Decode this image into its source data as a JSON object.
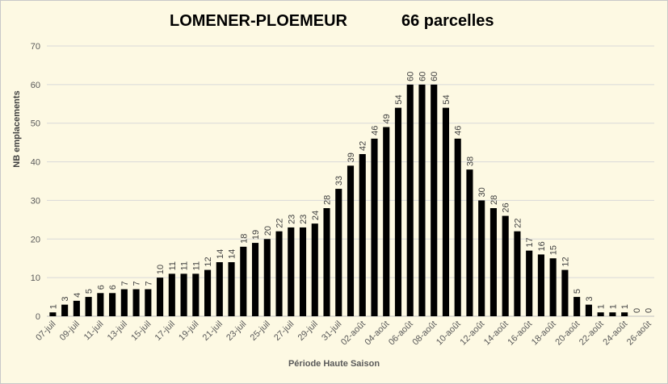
{
  "chart_data": {
    "type": "bar",
    "title": "LOMENER-PLOEMEUR",
    "subtitle": "66 parcelles",
    "xlabel": "Période Haute Saison",
    "ylabel": "NB emplacements",
    "ylim": [
      0,
      70
    ],
    "yticks": [
      0,
      10,
      20,
      30,
      40,
      50,
      60,
      70
    ],
    "grid": true,
    "legend": "none",
    "bar_color": "#000000",
    "categories": [
      "07-juil",
      "08-juil",
      "09-juil",
      "10-juil",
      "11-juil",
      "12-juil",
      "13-juil",
      "14-juil",
      "15-juil",
      "16-juil",
      "17-juil",
      "18-juil",
      "19-juil",
      "20-juil",
      "21-juil",
      "22-juil",
      "23-juil",
      "24-juil",
      "25-juil",
      "26-juil",
      "27-juil",
      "28-juil",
      "29-juil",
      "30-juil",
      "31-juil",
      "01-août",
      "02-août",
      "03-août",
      "04-août",
      "05-août",
      "06-août",
      "07-août",
      "08-août",
      "09-août",
      "10-août",
      "11-août",
      "12-août",
      "13-août",
      "14-août",
      "15-août",
      "16-août",
      "17-août",
      "18-août",
      "19-août",
      "20-août",
      "21-août",
      "22-août",
      "23-août",
      "24-août",
      "25-août",
      "26-août"
    ],
    "tick_labels": [
      "07-juil",
      "09-juil",
      "11-juil",
      "13-juil",
      "15-juil",
      "17-juil",
      "19-juil",
      "21-juil",
      "23-juil",
      "25-juil",
      "27-juil",
      "29-juil",
      "31-juil",
      "02-août",
      "04-août",
      "06-août",
      "08-août",
      "10-août",
      "12-août",
      "14-août",
      "16-août",
      "18-août",
      "20-août",
      "22-août",
      "24-août",
      "26-août"
    ],
    "values": [
      1,
      3,
      4,
      5,
      6,
      6,
      7,
      7,
      7,
      10,
      11,
      11,
      11,
      12,
      14,
      14,
      18,
      19,
      20,
      22,
      23,
      23,
      24,
      28,
      33,
      39,
      42,
      46,
      49,
      54,
      60,
      60,
      60,
      54,
      46,
      38,
      30,
      28,
      26,
      22,
      17,
      16,
      15,
      12,
      5,
      3,
      1,
      1,
      1,
      0,
      0
    ]
  }
}
